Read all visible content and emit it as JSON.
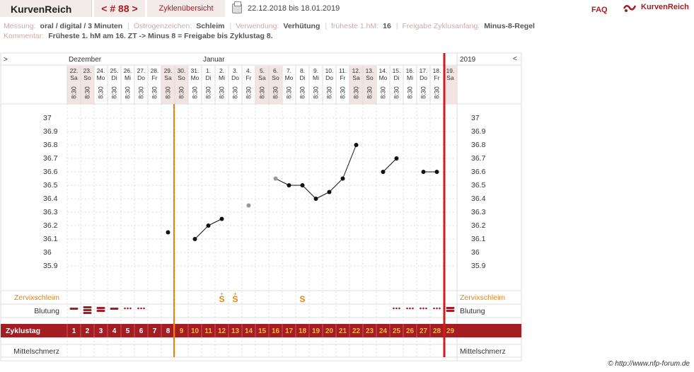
{
  "topbar": {
    "brand": "KurvenReich",
    "cycle_nav": "< # 88 >",
    "overview_label": "Zyklenübersicht",
    "date_range": "22.12.2018 bis 18.01.2019",
    "faq": "FAQ",
    "logo_text": "KurvenReich"
  },
  "meta": {
    "messung_label": "Messung:",
    "messung": "oral / digital / 3 Minuten",
    "oestrogen_label": "Östrogenzeichen:",
    "oestrogen": "Schleim",
    "verwendung_label": "Verwendung:",
    "verwendung": "Verhütung",
    "frueheste_label": "früheste 1.hM:",
    "frueheste": "16",
    "freigabe_label": "Freigabe Zyklusanfang:",
    "freigabe": "Minus-8-Regel",
    "kommentar_label": "Kommentar:",
    "kommentar": "Früheste 1. hM am 16. ZT -> Minus 8 = Freigabe bis Zyklustag 8."
  },
  "grid": {
    "left_arrow": ">",
    "right_arrow": "<",
    "month_dec": "Dezember",
    "month_jan": "Januar",
    "year": "2019",
    "row_zervix": "Zervixschleim",
    "row_blutung": "Blutung",
    "row_zyklustag": "Zyklustag",
    "row_mittelschmerz": "Mittelschmerz",
    "colors": {
      "accent": "#a31d23",
      "orange": "#e8820c",
      "weekend": "#f3e4e4"
    }
  },
  "days": [
    {
      "date": "22.",
      "wd": "Sa",
      "time": "8:30",
      "zt": "1"
    },
    {
      "date": "23.",
      "wd": "So",
      "time": "8:30",
      "zt": "2"
    },
    {
      "date": "24.",
      "wd": "Mo",
      "time": "8:30",
      "zt": "3"
    },
    {
      "date": "25.",
      "wd": "Di",
      "time": "8:30",
      "zt": "4"
    },
    {
      "date": "26.",
      "wd": "Mi",
      "time": "8:30",
      "zt": "5"
    },
    {
      "date": "27.",
      "wd": "Do",
      "time": "8:30",
      "zt": "6"
    },
    {
      "date": "28.",
      "wd": "Fr",
      "time": "8:30",
      "zt": "7"
    },
    {
      "date": "29.",
      "wd": "Sa",
      "time": "8:30",
      "zt": "8"
    },
    {
      "date": "30.",
      "wd": "So",
      "time": "8:30",
      "zt": "9"
    },
    {
      "date": "31.",
      "wd": "Mo",
      "time": "8:30",
      "zt": "10"
    },
    {
      "date": "1.",
      "wd": "Di",
      "time": "8:30",
      "zt": "11"
    },
    {
      "date": "2.",
      "wd": "Mi",
      "time": "8:30",
      "zt": "12"
    },
    {
      "date": "3.",
      "wd": "Do",
      "time": "8:30",
      "zt": "13"
    },
    {
      "date": "4.",
      "wd": "Fr",
      "time": "8:30",
      "zt": "14"
    },
    {
      "date": "5.",
      "wd": "Sa",
      "time": "8:30",
      "zt": "15"
    },
    {
      "date": "6.",
      "wd": "So",
      "time": "8:30",
      "zt": "16"
    },
    {
      "date": "7.",
      "wd": "Mo",
      "time": "8:30",
      "zt": "17"
    },
    {
      "date": "8.",
      "wd": "Di",
      "time": "8:30",
      "zt": "18"
    },
    {
      "date": "9.",
      "wd": "Mi",
      "time": "8:30",
      "zt": "19"
    },
    {
      "date": "10.",
      "wd": "Do",
      "time": "8:30",
      "zt": "20"
    },
    {
      "date": "11.",
      "wd": "Fr",
      "time": "8:30",
      "zt": "21"
    },
    {
      "date": "12.",
      "wd": "Sa",
      "time": "8:30",
      "zt": "22"
    },
    {
      "date": "13.",
      "wd": "So",
      "time": "8:30",
      "zt": "23"
    },
    {
      "date": "14.",
      "wd": "Mo",
      "time": "8:30",
      "zt": "24"
    },
    {
      "date": "15.",
      "wd": "Di",
      "time": "8:30",
      "zt": "25"
    },
    {
      "date": "16.",
      "wd": "Mi",
      "time": "8:30",
      "zt": "26"
    },
    {
      "date": "17.",
      "wd": "Do",
      "time": "8:30",
      "zt": "27"
    },
    {
      "date": "18.",
      "wd": "Fr",
      "time": "8:30",
      "zt": "28"
    },
    {
      "date": "19.",
      "wd": "Sa",
      "time": "",
      "zt": "29"
    }
  ],
  "temperature": {
    "y_ticks": [
      "37",
      "36.9",
      "36.8",
      "36.7",
      "36.6",
      "36.5",
      "36.4",
      "36.3",
      "36.2",
      "36.1",
      "36",
      "35.9"
    ],
    "ylim": [
      35.9,
      37.0
    ],
    "segments": [
      [
        {
          "zt": 8,
          "t": 36.15
        }
      ],
      [
        {
          "zt": 10,
          "t": 36.1
        },
        {
          "zt": 11,
          "t": 36.2
        },
        {
          "zt": 12,
          "t": 36.25
        }
      ],
      [
        {
          "zt": 14,
          "t": 36.35,
          "excluded": true
        }
      ],
      [
        {
          "zt": 16,
          "t": 36.55,
          "excluded": true
        },
        {
          "zt": 17,
          "t": 36.5
        },
        {
          "zt": 18,
          "t": 36.5
        },
        {
          "zt": 19,
          "t": 36.4
        },
        {
          "zt": 20,
          "t": 36.45
        },
        {
          "zt": 21,
          "t": 36.55
        },
        {
          "zt": 22,
          "t": 36.8
        }
      ],
      [
        {
          "zt": 24,
          "t": 36.6
        },
        {
          "zt": 25,
          "t": 36.7
        }
      ],
      [
        {
          "zt": 27,
          "t": 36.6
        },
        {
          "zt": 28,
          "t": 36.6
        }
      ]
    ]
  },
  "zervix": [
    {
      "zt": 12,
      "sym": "S",
      "plus": "+"
    },
    {
      "zt": 13,
      "sym": "S",
      "plus": "+"
    },
    {
      "zt": 18,
      "sym": "S",
      "plus": ""
    }
  ],
  "bleeding": [
    {
      "zt": 1,
      "kind": "strong"
    },
    {
      "zt": 2,
      "kind": "heavy"
    },
    {
      "zt": 3,
      "kind": "medium"
    },
    {
      "zt": 4,
      "kind": "strong"
    },
    {
      "zt": 5,
      "kind": "spot"
    },
    {
      "zt": 6,
      "kind": "spot"
    },
    {
      "zt": 25,
      "kind": "spot"
    },
    {
      "zt": 26,
      "kind": "spot"
    },
    {
      "zt": 27,
      "kind": "spot"
    },
    {
      "zt": 28,
      "kind": "spot"
    },
    {
      "zt": 29,
      "kind": "medium"
    }
  ],
  "markers": {
    "release_zt": 8,
    "cycle_end_zt": 28
  },
  "footer": "© http://www.nfp-forum.de"
}
